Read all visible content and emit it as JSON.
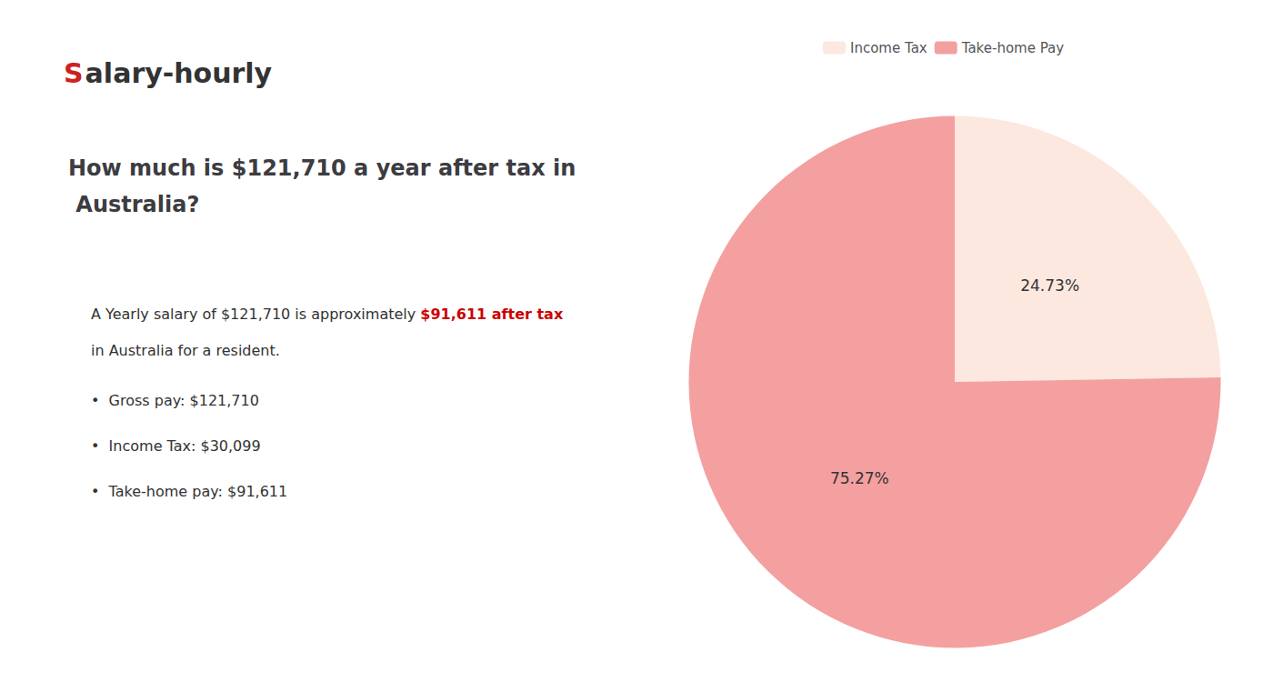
{
  "chart_data": {
    "type": "pie",
    "title": "How much is $121,710 a year after tax in Australia?",
    "categories": [
      "Income Tax",
      "Take-home Pay"
    ],
    "values": [
      24.73,
      75.27
    ],
    "value_labels": [
      "24.73%",
      "75.27%"
    ],
    "colors": [
      "#fce8df",
      "#f4a0a0"
    ],
    "data_labels": true,
    "legend": "top",
    "annotations": [
      {
        "text": "S",
        "color": "#cc2222"
      },
      {
        "text": "alary-hourly"
      },
      {
        "text": "A Yearly salary of $121,710 is approximately "
      },
      {
        "text": "$91,611 after tax",
        "color": "#cc0000"
      },
      {
        "text": "in Australia for a resident."
      },
      {
        "text": "•  Gross pay: $121,710"
      },
      {
        "text": "•  Income Tax: $30,099"
      },
      {
        "text": "•  Take-home pay: $91,611"
      }
    ]
  }
}
